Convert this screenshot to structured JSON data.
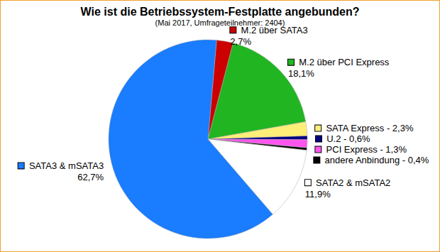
{
  "chart_data": {
    "type": "pie",
    "title": "Wie ist die Betriebssystem-Festplatte angebunden?",
    "subtitle": "(Mai 2017, Umfrageteilnehmer: 2404)",
    "categories": [
      "M.2 über SATA3",
      "M.2 über PCI Express",
      "SATA Express",
      "U.2",
      "PCI Express",
      "andere Anbindung",
      "SATA2 & mSATA2",
      "SATA3 & mSATA3"
    ],
    "values": [
      2.7,
      18.1,
      2.3,
      0.6,
      1.3,
      0.4,
      11.9,
      62.7
    ],
    "value_labels": [
      "M.2 über SATA3\n2,7%",
      "M.2 über PCI Express\n18,1%",
      "SATA Express - 2,3%",
      "U.2 - 0,6%",
      "PCI Express - 1,3%",
      "andere Anbindung - 0,4%",
      "SATA2 & mSATA2\n11,9%",
      "SATA3 & mSATA3\n62,7%"
    ],
    "colors": [
      "#cc0000",
      "#22b522",
      "#ffee77",
      "#000080",
      "#ff55ee",
      "#000000",
      "#ffffff",
      "#1a7cff"
    ],
    "data_labels": true
  }
}
